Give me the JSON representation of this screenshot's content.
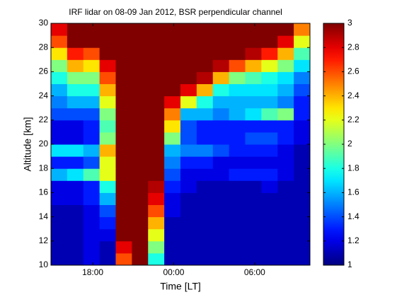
{
  "chart_data": {
    "type": "heatmap",
    "title": "IRF lidar on 08-09 Jan 2012, BSR perpendicular channel",
    "xlabel": "Time [LT]",
    "ylabel": "Altitude [km]",
    "colormap": "jet",
    "x": [
      15.5,
      16.7,
      17.9,
      19.1,
      20.3,
      21.5,
      22.7,
      23.9,
      25.1,
      26.3,
      27.5,
      28.7,
      29.9,
      31.1,
      32.3,
      33.5
    ],
    "y": [
      10.5,
      11.5,
      12.5,
      13.5,
      14.5,
      15.5,
      16.5,
      17.5,
      18.5,
      19.5,
      20.5,
      21.5,
      22.5,
      23.5,
      24.5,
      25.5,
      26.5,
      27.5,
      28.5,
      29.5
    ],
    "z": [
      [
        1.1,
        1.1,
        1.2,
        1.1,
        2.6,
        3,
        1.8,
        1.1,
        1.1,
        1.1,
        1.1,
        1.1,
        1.1,
        1.1,
        1.1,
        1.1
      ],
      [
        1.1,
        1.1,
        1.2,
        1.1,
        2.8,
        3,
        2,
        1.1,
        1.1,
        1.1,
        1.1,
        1.1,
        1.1,
        1.1,
        1.1,
        1.1
      ],
      [
        1.1,
        1.1,
        1.2,
        1.2,
        3,
        3,
        2.2,
        1.1,
        1.1,
        1.1,
        1.1,
        1.1,
        1.1,
        1.1,
        1.1,
        1.1
      ],
      [
        1.1,
        1.1,
        1.2,
        1.3,
        3,
        3,
        2.4,
        1.1,
        1.1,
        1.1,
        1.1,
        1.1,
        1.1,
        1.1,
        1.1,
        1.1
      ],
      [
        1.1,
        1.1,
        1.2,
        1.4,
        3,
        3,
        2.6,
        1.2,
        1.1,
        1.1,
        1.1,
        1.1,
        1.1,
        1.1,
        1.1,
        1.1
      ],
      [
        1.2,
        1.2,
        1.3,
        1.6,
        3,
        3,
        2.8,
        1.2,
        1.1,
        1.1,
        1.1,
        1.1,
        1.1,
        1.1,
        1.1,
        1.1
      ],
      [
        1.2,
        1.2,
        1.3,
        1.8,
        3,
        3,
        2.9,
        1.3,
        1.2,
        1.1,
        1.1,
        1.1,
        1.1,
        1.2,
        1.1,
        1.1
      ],
      [
        1.6,
        1.7,
        1.9,
        2.2,
        3,
        3,
        3,
        1.4,
        1.2,
        1.2,
        1.2,
        1.3,
        1.3,
        1.3,
        1.2,
        1.1
      ],
      [
        1.3,
        1.3,
        1.4,
        2.2,
        3,
        3,
        3,
        1.5,
        1.3,
        1.3,
        1.2,
        1.2,
        1.2,
        1.2,
        1.2,
        1.1
      ],
      [
        1.7,
        1.7,
        1.6,
        2.4,
        3,
        3,
        3,
        1.6,
        1.5,
        1.5,
        1.4,
        1.3,
        1.3,
        1.3,
        1.2,
        1.1
      ],
      [
        1.2,
        1.2,
        1.3,
        2,
        3,
        3,
        3,
        2,
        1.4,
        1.3,
        1.3,
        1.3,
        1.4,
        1.4,
        1.3,
        1.2
      ],
      [
        1.2,
        1.2,
        1.3,
        1.9,
        3,
        3,
        3,
        2.3,
        1.4,
        1.3,
        1.3,
        1.3,
        1.3,
        1.3,
        1.3,
        1.2
      ],
      [
        1.4,
        1.4,
        1.4,
        2,
        3,
        3,
        3,
        2.5,
        1.6,
        1.6,
        1.5,
        1.6,
        1.7,
        1.9,
        2,
        1.3
      ],
      [
        1.5,
        1.6,
        1.6,
        2.2,
        3,
        3,
        3,
        2.8,
        2.2,
        1.8,
        1.6,
        1.6,
        1.6,
        1.6,
        1.5,
        1.3
      ],
      [
        1.6,
        1.8,
        1.8,
        2.4,
        3,
        3,
        3,
        3,
        2.8,
        2.4,
        1.8,
        1.7,
        1.7,
        1.7,
        1.6,
        1.4
      ],
      [
        1.8,
        2,
        2,
        2.6,
        3,
        3,
        3,
        3,
        3,
        2.9,
        2.4,
        2,
        1.9,
        1.8,
        1.7,
        1.5
      ],
      [
        2,
        2.4,
        2.3,
        2.8,
        3,
        3,
        3,
        3,
        3,
        3,
        2.9,
        2.6,
        2.4,
        2.2,
        2,
        1.7
      ],
      [
        2.3,
        2.7,
        2.6,
        3,
        3,
        3,
        3,
        3,
        3,
        3,
        3,
        3,
        2.9,
        2.7,
        2.4,
        1.9
      ],
      [
        2.6,
        3,
        3,
        3,
        3,
        3,
        3,
        3,
        3,
        3,
        3,
        3,
        3,
        3,
        2.8,
        2.2
      ],
      [
        2.8,
        3,
        3,
        3,
        3,
        3,
        3,
        3,
        3,
        3,
        3,
        3,
        3,
        3,
        3,
        2.5
      ]
    ],
    "xlim": [
      14.9,
      34.1
    ],
    "ylim": [
      10,
      30
    ],
    "xticks": [
      {
        "value": 18,
        "label": "18:00"
      },
      {
        "value": 24,
        "label": "00:00"
      },
      {
        "value": 30,
        "label": "06:00"
      }
    ],
    "yticks": [
      10,
      12,
      14,
      16,
      18,
      20,
      22,
      24,
      26,
      28,
      30
    ],
    "clim": [
      1,
      3
    ],
    "cticks": [
      1,
      1.2,
      1.4,
      1.6,
      1.8,
      2,
      2.2,
      2.4,
      2.6,
      2.8,
      3
    ]
  }
}
